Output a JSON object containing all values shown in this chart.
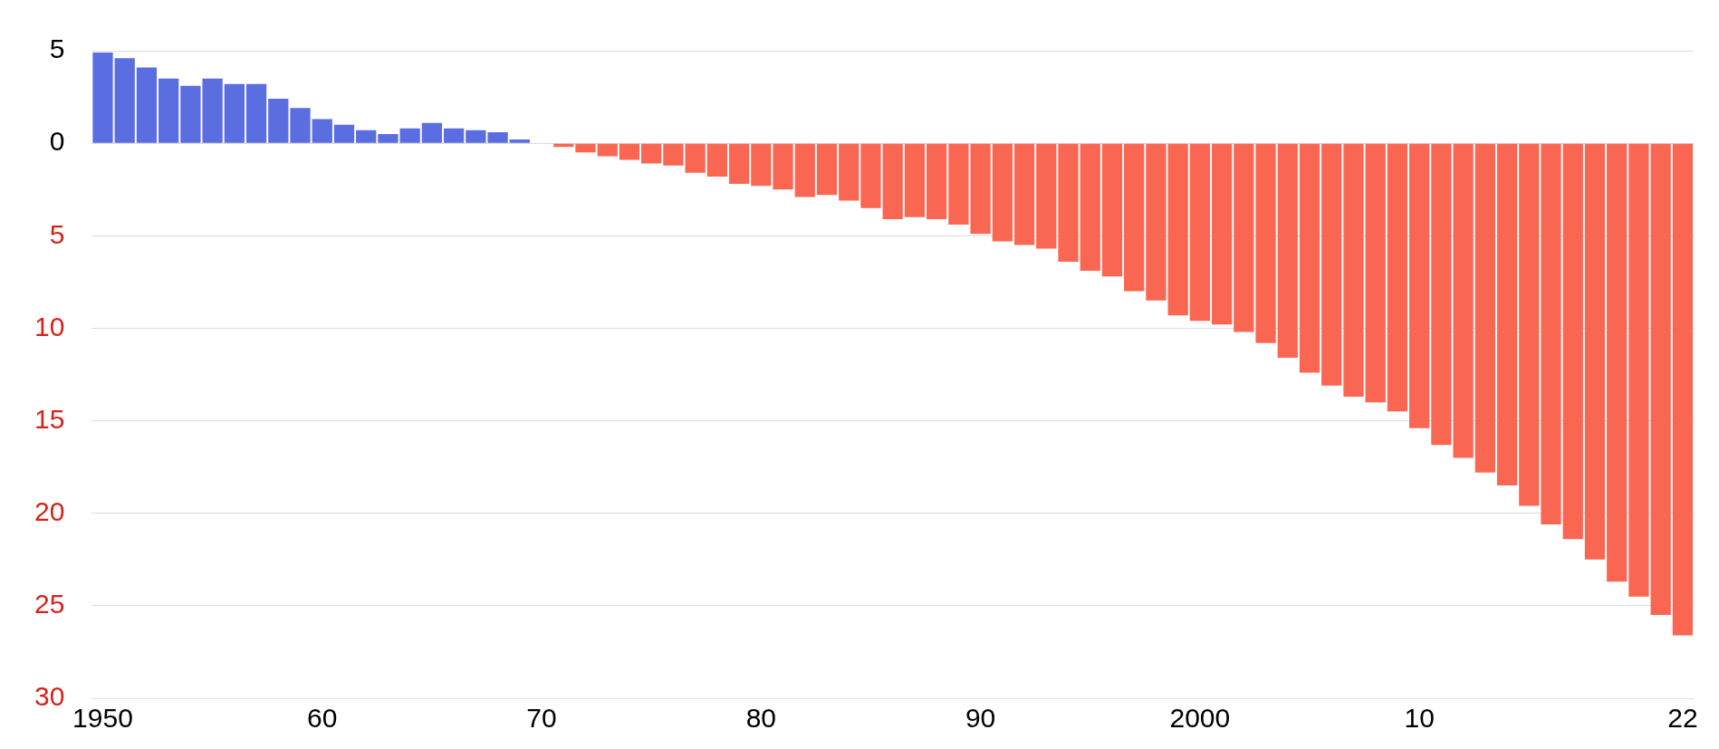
{
  "chart_data": {
    "type": "bar",
    "categories": [
      "1950",
      null,
      null,
      null,
      null,
      null,
      null,
      null,
      null,
      null,
      "60",
      null,
      null,
      null,
      null,
      null,
      null,
      null,
      null,
      null,
      "70",
      null,
      null,
      null,
      null,
      null,
      null,
      null,
      null,
      null,
      "80",
      null,
      null,
      null,
      null,
      null,
      null,
      null,
      null,
      null,
      "90",
      null,
      null,
      null,
      null,
      null,
      null,
      null,
      null,
      null,
      "2000",
      null,
      null,
      null,
      null,
      null,
      null,
      null,
      null,
      null,
      "10",
      null,
      null,
      null,
      null,
      null,
      null,
      null,
      null,
      null,
      null,
      null,
      "22"
    ],
    "values": [
      4.9,
      4.6,
      4.1,
      3.5,
      3.1,
      3.5,
      3.2,
      3.2,
      2.4,
      1.9,
      1.3,
      1.0,
      0.7,
      0.5,
      0.8,
      1.1,
      0.8,
      0.7,
      0.6,
      0.2,
      0,
      -0.2,
      -0.5,
      -0.7,
      -0.9,
      -1.1,
      -1.2,
      -1.6,
      -1.8,
      -2.2,
      -2.3,
      -2.5,
      -2.9,
      -2.8,
      -3.1,
      -3.5,
      -4.1,
      -4.0,
      -4.1,
      -4.4,
      -4.9,
      -5.3,
      -5.5,
      -5.7,
      -6.4,
      -6.9,
      -7.2,
      -8.0,
      -8.5,
      -9.3,
      -9.6,
      -9.8,
      -10.2,
      -10.8,
      -11.6,
      -12.4,
      -13.1,
      -13.7,
      -14.0,
      -14.5,
      -15.4,
      -16.3,
      -17.0,
      -17.8,
      -18.5,
      -19.6,
      -20.6,
      -21.4,
      -22.5,
      -23.7,
      -24.5,
      -25.5,
      -26.6
    ],
    "colors": [
      "#5b6ee1",
      "#5b6ee1",
      "#5b6ee1",
      "#5b6ee1",
      "#5b6ee1",
      "#5b6ee1",
      "#5b6ee1",
      "#5b6ee1",
      "#5b6ee1",
      "#5b6ee1",
      "#5b6ee1",
      "#5b6ee1",
      "#5b6ee1",
      "#5b6ee1",
      "#5b6ee1",
      "#5b6ee1",
      "#5b6ee1",
      "#5b6ee1",
      "#5b6ee1",
      "#5b6ee1",
      "#5b6ee1",
      "#f96753",
      "#f96753",
      "#f96753",
      "#f96753",
      "#f96753",
      "#f96753",
      "#f96753",
      "#f96753",
      "#f96753",
      "#f96753",
      "#f96753",
      "#f96753",
      "#f96753",
      "#f96753",
      "#f96753",
      "#f96753",
      "#f96753",
      "#f96753",
      "#f96753",
      "#f96753",
      "#f96753",
      "#f96753",
      "#f96753",
      "#f96753",
      "#f96753",
      "#f96753",
      "#f96753",
      "#f96753",
      "#f96753",
      "#f96753",
      "#f96753",
      "#f96753",
      "#f96753",
      "#f96753",
      "#f96753",
      "#f96753",
      "#f96753",
      "#f96753",
      "#f96753",
      "#f96753",
      "#f96753",
      "#f96753",
      "#f96753",
      "#f96753",
      "#f96753",
      "#f96753",
      "#f96753",
      "#f96753",
      "#f96753",
      "#f96753",
      "#f96753",
      "#f96753"
    ],
    "ylim": [
      -30,
      5
    ],
    "yticks": [
      5,
      0,
      {
        "value": -5,
        "label": "5"
      },
      {
        "value": -10,
        "label": "10"
      },
      {
        "value": -15,
        "label": "15"
      },
      {
        "value": -20,
        "label": "20"
      },
      {
        "value": -25,
        "label": "25"
      },
      {
        "value": -30,
        "label": "30"
      }
    ],
    "grid": "y",
    "legend": false
  }
}
